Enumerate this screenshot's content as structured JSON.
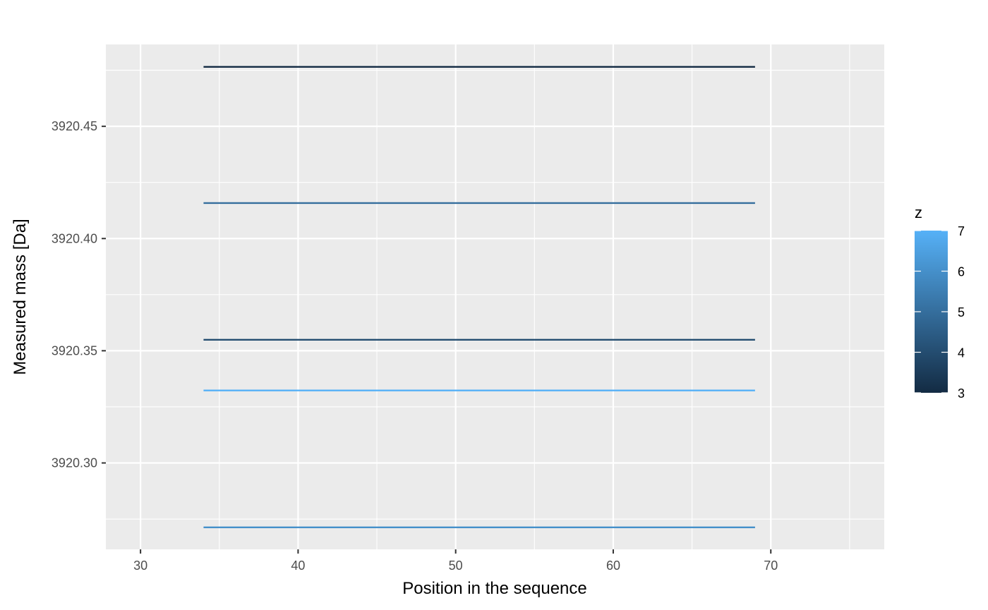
{
  "chart_data": {
    "type": "line",
    "xlabel": "Position in the sequence",
    "ylabel": "Measured mass [Da]",
    "xlim": [
      27.8,
      77.2
    ],
    "ylim": [
      3920.2615,
      3920.4865
    ],
    "x_ticks": [
      30,
      40,
      50,
      60,
      70
    ],
    "x_tick_labels": [
      "30",
      "40",
      "50",
      "60",
      "70"
    ],
    "y_ticks": [
      3920.3,
      3920.35,
      3920.4,
      3920.45
    ],
    "y_tick_labels": [
      "3920.30",
      "3920.35",
      "3920.40",
      "3920.45"
    ],
    "grid": true,
    "series": [
      {
        "x": [
          34,
          69
        ],
        "y": [
          3920.4765,
          3920.4765
        ],
        "z": 3
      },
      {
        "x": [
          34,
          69
        ],
        "y": [
          3920.4158,
          3920.4158
        ],
        "z": 5
      },
      {
        "x": [
          34,
          69
        ],
        "y": [
          3920.3549,
          3920.3549
        ],
        "z": 4
      },
      {
        "x": [
          34,
          69
        ],
        "y": [
          3920.3323,
          3920.3323
        ],
        "z": 7
      },
      {
        "x": [
          34,
          69
        ],
        "y": [
          3920.2713,
          3920.2713
        ],
        "z": 6
      }
    ],
    "legend": {
      "title": "z",
      "position": "right",
      "min": 3,
      "max": 7,
      "ticks": [
        3,
        4,
        5,
        6,
        7
      ],
      "tick_labels": [
        "3",
        "4",
        "5",
        "6",
        "7"
      ],
      "color_low": "#132B43",
      "color_high": "#56B1F7"
    },
    "panel_background": "#EBEBEB",
    "grid_color": "#FFFFFF"
  }
}
